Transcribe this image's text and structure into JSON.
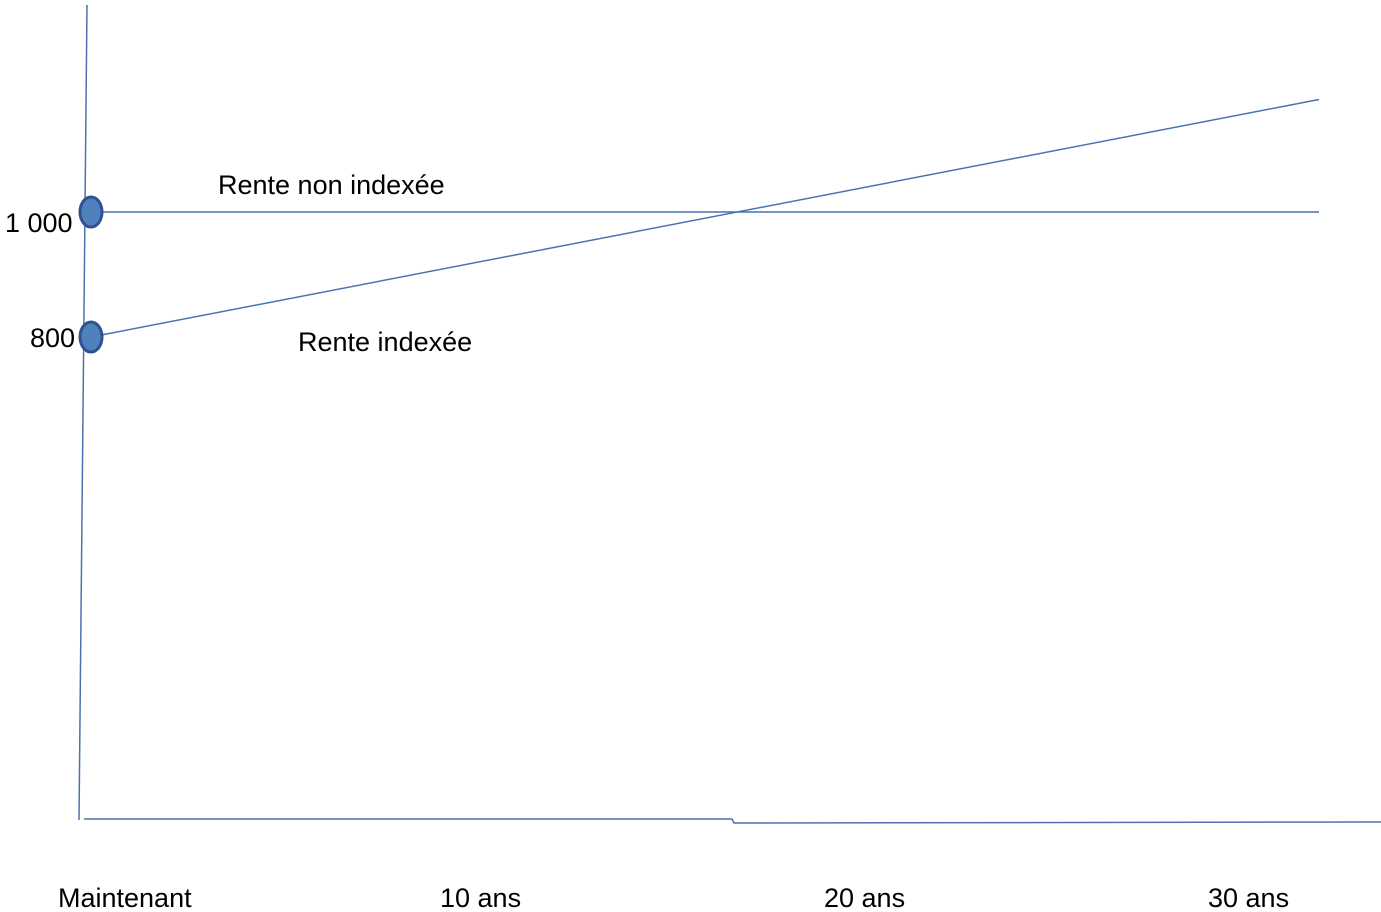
{
  "chart_data": {
    "type": "line",
    "title": "",
    "xlabel": "",
    "ylabel": "",
    "x_tick_labels": [
      "Maintenant",
      "10 ans",
      "20 ans",
      "30 ans"
    ],
    "y_tick_labels": [
      "1 000",
      "800"
    ],
    "y_tick_values": [
      1000,
      800
    ],
    "series": [
      {
        "name": "Rente non indexée",
        "x": [
          0,
          30
        ],
        "y": [
          1000,
          1000
        ]
      },
      {
        "name": "Rente indexée",
        "x": [
          0,
          30
        ],
        "y": [
          800,
          1180
        ]
      }
    ],
    "colors": {
      "line": "#4a72b0",
      "marker_fill": "#4f81bd",
      "marker_edge": "#2f528f",
      "text": "#000000"
    },
    "grid": false,
    "legend": "none"
  }
}
